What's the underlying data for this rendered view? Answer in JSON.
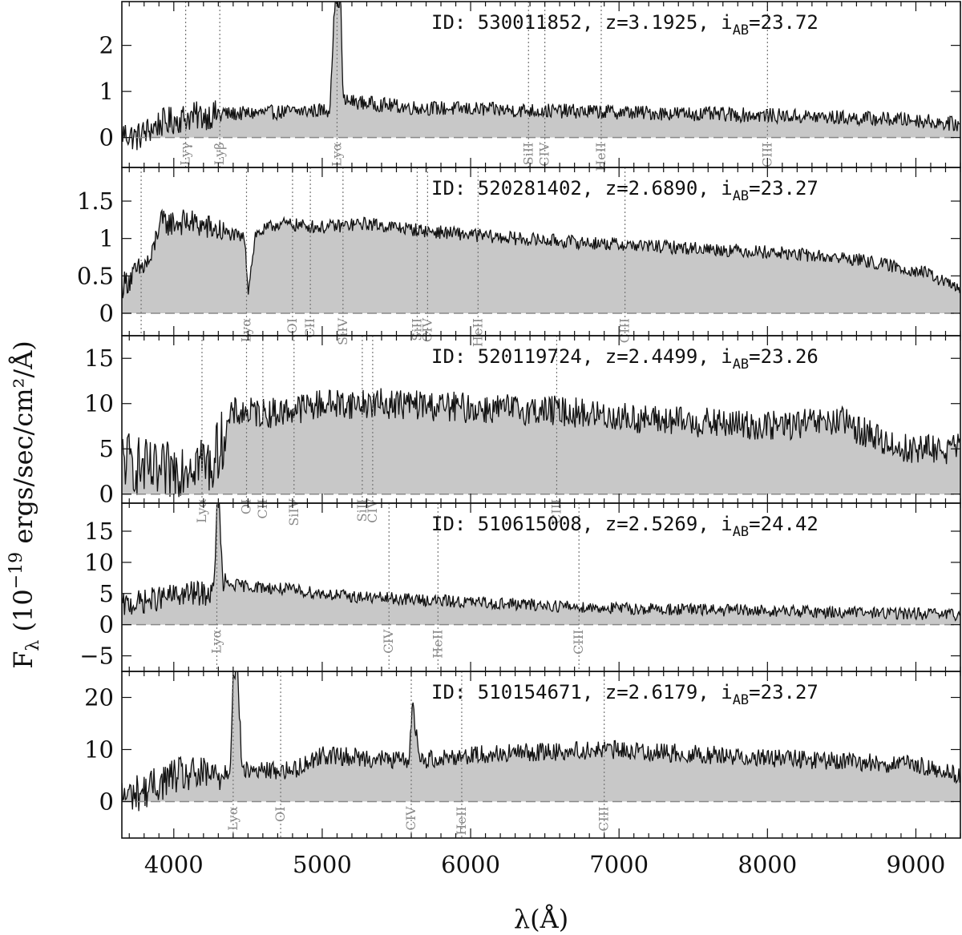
{
  "chart_data": {
    "type": "line",
    "xlabel": "λ(Å)",
    "ylabel": "F_λ (10^-19 ergs/sec/cm²/Å)",
    "xlim": [
      3650,
      9300
    ],
    "x_ticks": [
      4000,
      5000,
      6000,
      7000,
      8000,
      9000
    ],
    "x_tick_labels": [
      "4000",
      "5000",
      "6000",
      "7000",
      "8000",
      "9000"
    ],
    "panels": [
      {
        "id_text": "ID: 530011852, z=3.1925, i",
        "mag_sub": "AB",
        "mag_text": "=23.72",
        "ylim": [
          -0.65,
          2.95
        ],
        "yticks": [
          0,
          1,
          2
        ],
        "ytick_labels": [
          "0",
          "1",
          "2"
        ],
        "noise": 0.16,
        "lines": [
          {
            "name": "Lyγ",
            "wavelength": 4080
          },
          {
            "name": "Lyβ",
            "wavelength": 4310
          },
          {
            "name": "Lyα",
            "wavelength": 5100
          },
          {
            "name": "SiII",
            "wavelength": 6390
          },
          {
            "name": "CIV",
            "wavelength": 6500
          },
          {
            "name": "HeII",
            "wavelength": 6880
          },
          {
            "name": "CIII",
            "wavelength": 8000
          }
        ],
        "spectrum": [
          [
            3650,
            0.1
          ],
          [
            3750,
            0.0
          ],
          [
            3900,
            0.3
          ],
          [
            4100,
            0.45
          ],
          [
            4300,
            0.5
          ],
          [
            4700,
            0.55
          ],
          [
            5050,
            0.6
          ],
          [
            5085,
            2.95
          ],
          [
            5125,
            2.95
          ],
          [
            5140,
            0.8
          ],
          [
            5600,
            0.65
          ],
          [
            6200,
            0.6
          ],
          [
            7000,
            0.55
          ],
          [
            8000,
            0.48
          ],
          [
            9000,
            0.38
          ],
          [
            9300,
            0.28
          ]
        ]
      },
      {
        "id_text": "ID: 520281402, z=2.6890, i",
        "mag_sub": "AB",
        "mag_text": "=23.27",
        "ylim": [
          -0.3,
          1.95
        ],
        "yticks": [
          0,
          0.5,
          1,
          1.5
        ],
        "ytick_labels": [
          "0",
          "0.5",
          "1",
          "1.5"
        ],
        "noise": 0.09,
        "lines": [
          {
            "name": "",
            "wavelength": 3780
          },
          {
            "name": "Lyα",
            "wavelength": 4490
          },
          {
            "name": "OI",
            "wavelength": 4800
          },
          {
            "name": "CII",
            "wavelength": 4920
          },
          {
            "name": "SiIV",
            "wavelength": 5140
          },
          {
            "name": "SiII",
            "wavelength": 5640
          },
          {
            "name": "CIV",
            "wavelength": 5710
          },
          {
            "name": "HeII",
            "wavelength": 6050
          },
          {
            "name": "CIII",
            "wavelength": 7040
          }
        ],
        "spectrum": [
          [
            3650,
            0.37
          ],
          [
            3850,
            0.72
          ],
          [
            3900,
            1.2
          ],
          [
            4100,
            1.22
          ],
          [
            4480,
            1.0
          ],
          [
            4500,
            0.3
          ],
          [
            4550,
            1.05
          ],
          [
            4700,
            1.2
          ],
          [
            5000,
            1.15
          ],
          [
            5300,
            1.2
          ],
          [
            5700,
            1.1
          ],
          [
            6300,
            1.0
          ],
          [
            7000,
            0.92
          ],
          [
            8000,
            0.82
          ],
          [
            8600,
            0.72
          ],
          [
            9050,
            0.55
          ],
          [
            9300,
            0.32
          ]
        ]
      },
      {
        "id_text": "ID: 520119724, z=2.4499, i",
        "mag_sub": "AB",
        "mag_text": "=23.26",
        "ylim": [
          -1,
          17.5
        ],
        "yticks": [
          0,
          5,
          10,
          15
        ],
        "ytick_labels": [
          "0",
          "5",
          "10",
          "15"
        ],
        "noise": 1.7,
        "lines": [
          {
            "name": "Lyα",
            "wavelength": 4190
          },
          {
            "name": "OI",
            "wavelength": 4490
          },
          {
            "name": "CII",
            "wavelength": 4600
          },
          {
            "name": "SiIV",
            "wavelength": 4810
          },
          {
            "name": "SiII",
            "wavelength": 5270
          },
          {
            "name": "CIV",
            "wavelength": 5340
          },
          {
            "name": "CIII",
            "wavelength": 6580
          }
        ],
        "spectrum": [
          [
            3650,
            4
          ],
          [
            3900,
            2
          ],
          [
            4150,
            4
          ],
          [
            4250,
            3
          ],
          [
            4400,
            9
          ],
          [
            4700,
            9
          ],
          [
            5000,
            10
          ],
          [
            5500,
            10
          ],
          [
            6000,
            9.5
          ],
          [
            6600,
            9.2
          ],
          [
            7200,
            8.2
          ],
          [
            8000,
            7.5
          ],
          [
            8500,
            8
          ],
          [
            8900,
            5
          ],
          [
            9300,
            5
          ]
        ]
      },
      {
        "id_text": "ID: 510615008, z=2.5269, i",
        "mag_sub": "AB",
        "mag_text": "=24.42",
        "ylim": [
          -7.5,
          19.5
        ],
        "yticks": [
          -5,
          0,
          5,
          10,
          15
        ],
        "ytick_labels": [
          "−5",
          "0",
          "5",
          "10",
          "15"
        ],
        "noise": 1.0,
        "lines": [
          {
            "name": "Lyα",
            "wavelength": 4290
          },
          {
            "name": "CIV",
            "wavelength": 5450
          },
          {
            "name": "HeII",
            "wavelength": 5780
          },
          {
            "name": "CIII",
            "wavelength": 6730
          }
        ],
        "spectrum": [
          [
            3650,
            3
          ],
          [
            3850,
            4
          ],
          [
            4100,
            5
          ],
          [
            4270,
            5
          ],
          [
            4290,
            19.5
          ],
          [
            4305,
            19.5
          ],
          [
            4330,
            6.5
          ],
          [
            4700,
            5.8
          ],
          [
            5200,
            4.5
          ],
          [
            6000,
            3.6
          ],
          [
            7000,
            2.6
          ],
          [
            8000,
            2.2
          ],
          [
            9000,
            1.8
          ],
          [
            9300,
            1.5
          ]
        ]
      },
      {
        "id_text": "ID: 510154671, z=2.6179, i",
        "mag_sub": "AB",
        "mag_text": "=23.27",
        "ylim": [
          -7,
          25
        ],
        "yticks": [
          0,
          10,
          20
        ],
        "ytick_labels": [
          "0",
          "10",
          "20"
        ],
        "noise": 1.8,
        "lines": [
          {
            "name": "Lyα",
            "wavelength": 4400
          },
          {
            "name": "OI",
            "wavelength": 4720
          },
          {
            "name": "CIV",
            "wavelength": 5600
          },
          {
            "name": "HeII",
            "wavelength": 5940
          },
          {
            "name": "CIII",
            "wavelength": 6900
          }
        ],
        "spectrum": [
          [
            3650,
            1
          ],
          [
            3800,
            2
          ],
          [
            4000,
            5
          ],
          [
            4300,
            5
          ],
          [
            4380,
            6
          ],
          [
            4400,
            25
          ],
          [
            4430,
            25
          ],
          [
            4460,
            6
          ],
          [
            4800,
            6
          ],
          [
            5000,
            9
          ],
          [
            5500,
            8
          ],
          [
            5580,
            8
          ],
          [
            5610,
            18
          ],
          [
            5660,
            8
          ],
          [
            6000,
            9
          ],
          [
            6900,
            10
          ],
          [
            7600,
            9
          ],
          [
            8300,
            8
          ],
          [
            9000,
            7
          ],
          [
            9300,
            5
          ]
        ]
      }
    ]
  }
}
